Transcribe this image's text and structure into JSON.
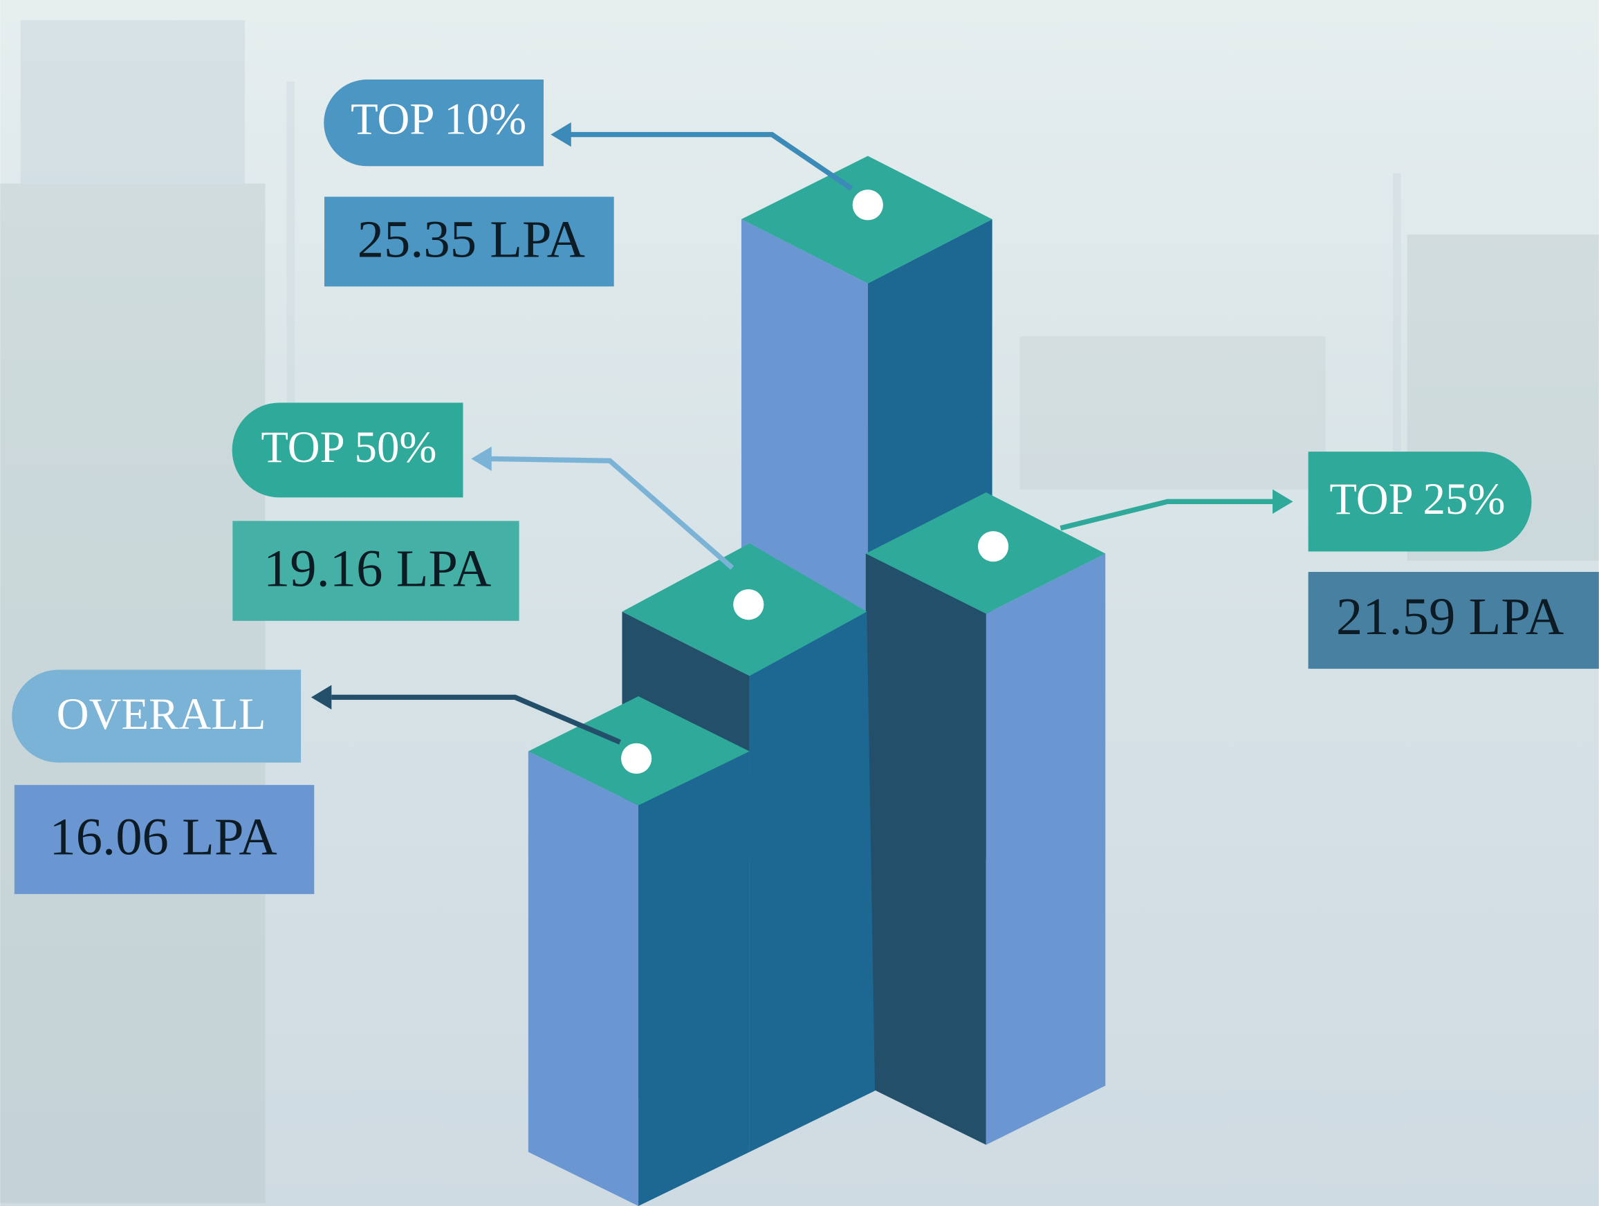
{
  "items": [
    {
      "label": "TOP 10%",
      "value": "25.35 LPA"
    },
    {
      "label": "TOP 50%",
      "value": "19.16 LPA"
    },
    {
      "label": "TOP 25%",
      "value": "21.59 LPA"
    },
    {
      "label": "OVERALL",
      "value": "16.06 LPA"
    }
  ]
}
